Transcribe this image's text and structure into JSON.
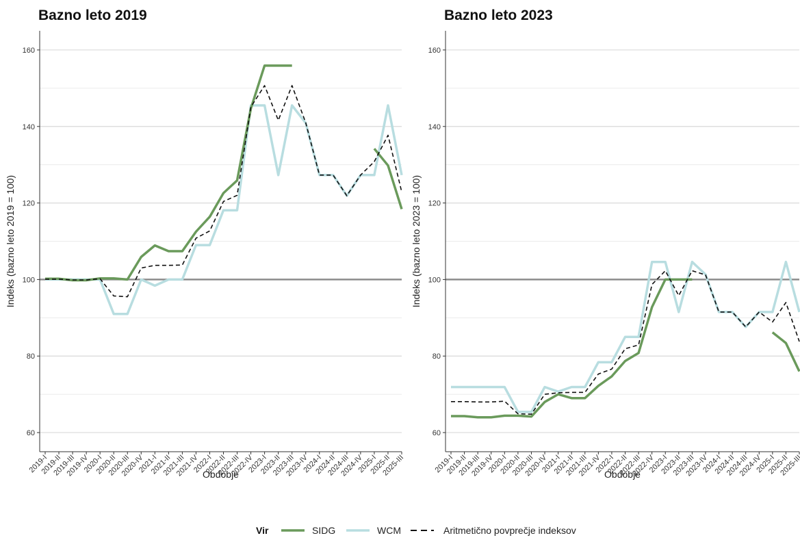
{
  "chart_data": [
    {
      "type": "line",
      "title": "Bazno leto 2019",
      "xlabel": "Obdobje",
      "ylabel": "Indeks (bazno leto 2019 = 100)",
      "ylim": [
        55,
        165
      ],
      "yticks": [
        60,
        80,
        100,
        120,
        140,
        160
      ],
      "reference_line": 100,
      "grid": true,
      "categories": [
        "2019-I",
        "2019-II",
        "2019-III",
        "2019-IV",
        "2020-I",
        "2020-II",
        "2020-III",
        "2020-IV",
        "2021-I",
        "2021-II",
        "2021-III",
        "2021-IV",
        "2022-I",
        "2022-II",
        "2022-III",
        "2022-IV",
        "2023-I",
        "2023-II",
        "2023-III",
        "2023-IV",
        "2024-I",
        "2024-II",
        "2024-III",
        "2024-IV",
        "2025-I",
        "2025-II",
        "2025-III"
      ],
      "series": [
        {
          "name": "SIDG",
          "color": "#6a9a5b",
          "values": [
            100.2,
            100.2,
            99.8,
            99.8,
            100.3,
            100.3,
            100.0,
            105.9,
            108.9,
            107.4,
            107.4,
            112.5,
            116.4,
            122.6,
            125.9,
            144.7,
            155.9,
            155.9,
            155.9,
            null,
            null,
            null,
            null,
            null,
            134.2,
            129.8,
            118.4
          ]
        },
        {
          "name": "WCM",
          "color": "#b8dde0",
          "values": [
            100.0,
            100.0,
            100.0,
            100.0,
            100.0,
            91.0,
            91.0,
            100.0,
            98.4,
            100.0,
            100.0,
            109.0,
            109.0,
            118.1,
            118.1,
            145.5,
            145.5,
            127.3,
            145.5,
            140.9,
            127.3,
            127.3,
            121.9,
            127.3,
            127.3,
            145.5,
            127.3
          ]
        },
        {
          "name": "Aritmetično povprečje indeksov",
          "color": "#111111",
          "dashed": true,
          "values": [
            100.1,
            100.1,
            99.9,
            99.9,
            100.2,
            95.7,
            95.5,
            103.0,
            103.7,
            103.7,
            103.8,
            110.8,
            112.7,
            120.4,
            122.0,
            145.1,
            150.7,
            141.6,
            150.7,
            141.0,
            127.3,
            127.3,
            121.9,
            127.3,
            130.8,
            137.7,
            122.9
          ]
        }
      ]
    },
    {
      "type": "line",
      "title": "Bazno leto 2023",
      "xlabel": "Obdobje",
      "ylabel": "Indeks (bazno leto 2023 = 100)",
      "ylim": [
        55,
        165
      ],
      "yticks": [
        60,
        80,
        100,
        120,
        140,
        160
      ],
      "reference_line": 100,
      "grid": true,
      "categories": [
        "2019-I",
        "2019-II",
        "2019-III",
        "2019-IV",
        "2020-I",
        "2020-II",
        "2020-III",
        "2020-IV",
        "2021-I",
        "2021-II",
        "2021-III",
        "2021-IV",
        "2022-I",
        "2022-II",
        "2022-III",
        "2022-IV",
        "2023-I",
        "2023-II",
        "2023-III",
        "2023-IV",
        "2024-I",
        "2024-II",
        "2024-III",
        "2024-IV",
        "2025-I",
        "2025-II",
        "2025-III"
      ],
      "series": [
        {
          "name": "SIDG",
          "color": "#6a9a5b",
          "values": [
            64.3,
            64.3,
            64.0,
            64.0,
            64.4,
            64.4,
            64.2,
            68.0,
            70.0,
            69.0,
            69.0,
            72.2,
            74.7,
            78.7,
            80.8,
            92.8,
            100.0,
            100.0,
            100.0,
            null,
            null,
            null,
            null,
            null,
            86.2,
            83.4,
            76.0
          ]
        },
        {
          "name": "WCM",
          "color": "#b8dde0",
          "values": [
            71.9,
            71.9,
            71.9,
            71.9,
            71.9,
            65.4,
            65.4,
            71.9,
            70.7,
            71.9,
            71.9,
            78.4,
            78.4,
            85.0,
            85.0,
            104.6,
            104.6,
            91.5,
            104.6,
            101.3,
            91.5,
            91.5,
            87.6,
            91.5,
            91.5,
            104.6,
            91.5
          ]
        },
        {
          "name": "Aritmetično povprečje indeksov",
          "color": "#111111",
          "dashed": true,
          "values": [
            68.1,
            68.1,
            68.0,
            68.0,
            68.2,
            64.9,
            64.8,
            70.0,
            70.4,
            70.5,
            70.5,
            75.3,
            76.6,
            81.9,
            82.9,
            98.7,
            102.3,
            95.8,
            102.3,
            101.2,
            91.5,
            91.5,
            87.6,
            91.5,
            88.9,
            94.0,
            83.8
          ]
        }
      ]
    }
  ],
  "legend": {
    "title": "Vir",
    "position": "bottom",
    "items": [
      "SIDG",
      "WCM",
      "Aritmetično povprečje indeksov"
    ]
  }
}
